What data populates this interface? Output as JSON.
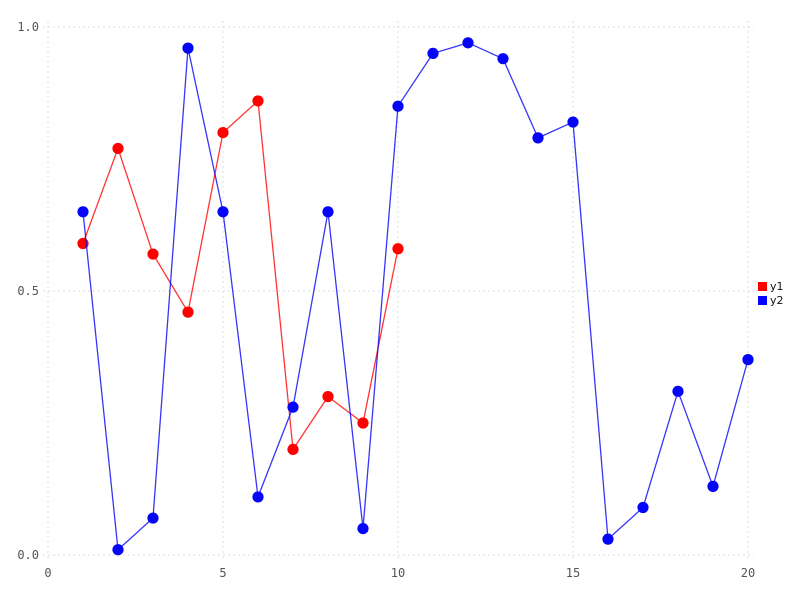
{
  "chart_data": {
    "type": "line",
    "title": "",
    "xlabel": "",
    "ylabel": "",
    "xlim": [
      0,
      20
    ],
    "ylim": [
      0.0,
      1.0
    ],
    "grid": "dotted",
    "legend_position": "right-outside-center",
    "x_ticks": {
      "values": [
        0,
        5,
        10,
        15,
        20
      ],
      "labels": [
        "0",
        "5",
        "10",
        "15",
        "20"
      ]
    },
    "y_ticks": {
      "values": [
        0.0,
        0.5,
        1.0
      ],
      "labels": [
        "0.0",
        "0.5",
        "1.0"
      ]
    },
    "series": [
      {
        "name": "y1",
        "color": "#ff0000",
        "marker": "circle",
        "x": [
          1,
          2,
          3,
          4,
          5,
          6,
          7,
          8,
          9,
          10
        ],
        "values": [
          0.59,
          0.77,
          0.57,
          0.46,
          0.8,
          0.86,
          0.2,
          0.3,
          0.25,
          0.58
        ]
      },
      {
        "name": "y2",
        "color": "#0404f8",
        "marker": "circle",
        "x": [
          1,
          2,
          3,
          4,
          5,
          6,
          7,
          8,
          9,
          10,
          11,
          12,
          13,
          14,
          15,
          16,
          17,
          18,
          19,
          20
        ],
        "values": [
          0.65,
          0.01,
          0.07,
          0.96,
          0.65,
          0.11,
          0.28,
          0.65,
          0.05,
          0.85,
          0.95,
          0.97,
          0.94,
          0.79,
          0.82,
          0.03,
          0.09,
          0.31,
          0.13,
          0.37
        ]
      }
    ]
  },
  "style": {
    "grid_color": "#dcdcdc",
    "tick_label_color": "#555555",
    "legend_text_color": "#111111",
    "background": "#ffffff"
  }
}
